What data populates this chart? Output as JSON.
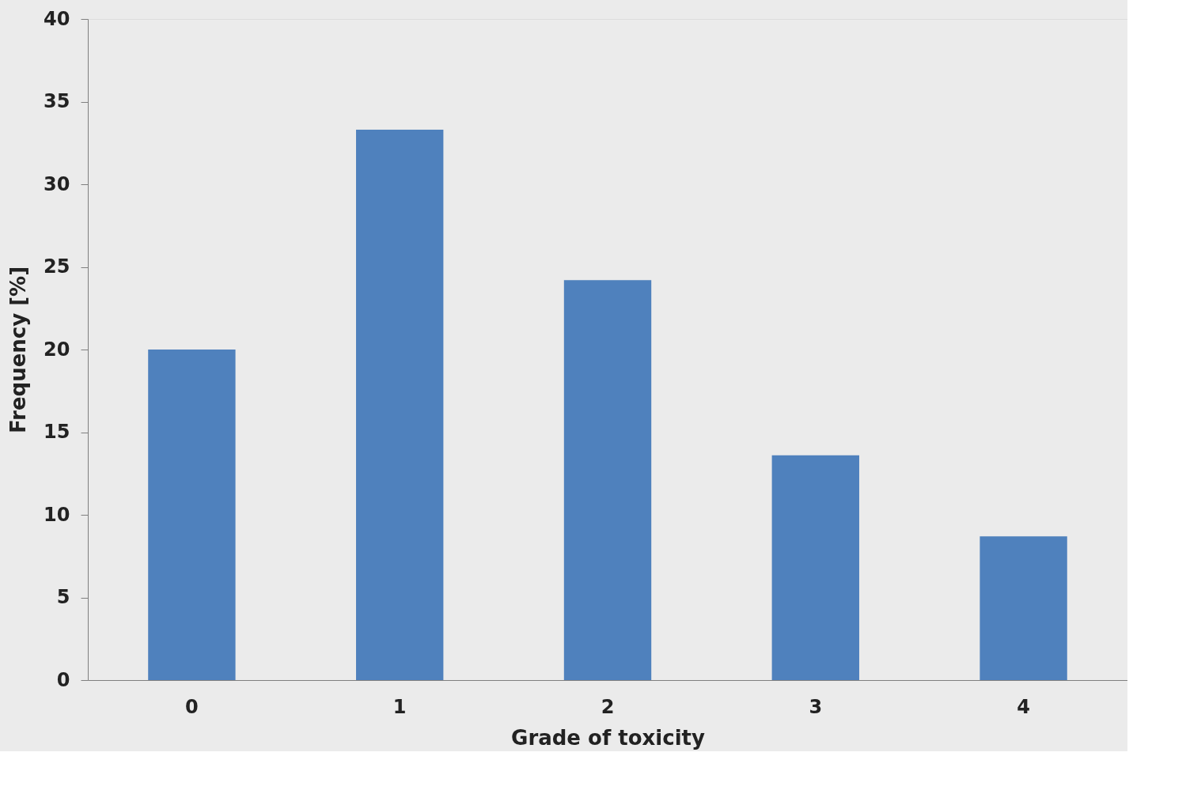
{
  "chart_data": {
    "type": "bar",
    "xlabel": "Grade of toxicity",
    "ylabel": "Frequency [%]",
    "categories": [
      "0",
      "1",
      "2",
      "3",
      "4"
    ],
    "values": [
      20.0,
      33.3,
      24.2,
      13.6,
      8.7
    ],
    "color": "#4f81bd",
    "ylim": [
      0,
      40
    ],
    "yticks": [
      0,
      5,
      10,
      15,
      20,
      25,
      30,
      35,
      40
    ],
    "grid": false
  }
}
